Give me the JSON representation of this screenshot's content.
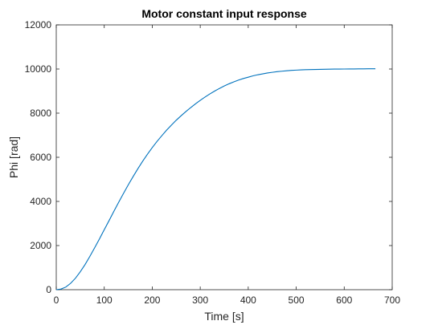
{
  "chart_data": {
    "type": "line",
    "title": "Motor constant input response",
    "xlabel": "Time [s]",
    "ylabel": "Phi [rad]",
    "xlim": [
      0,
      700
    ],
    "ylim": [
      0,
      12000
    ],
    "xticks": [
      0,
      100,
      200,
      300,
      400,
      500,
      600,
      700
    ],
    "yticks": [
      0,
      2000,
      4000,
      6000,
      8000,
      10000,
      12000
    ],
    "xtick_labels": [
      "0",
      "100",
      "200",
      "300",
      "400",
      "500",
      "600",
      "700"
    ],
    "ytick_labels": [
      "0",
      "2000",
      "4000",
      "6000",
      "8000",
      "10000",
      "12000"
    ],
    "grid": false,
    "legend": false,
    "line_color": "#0072bd",
    "series": [
      {
        "x": [
          0,
          10,
          20,
          30,
          40,
          50,
          60,
          70,
          80,
          90,
          100,
          110,
          120,
          130,
          140,
          150,
          160,
          170,
          180,
          190,
          200,
          210,
          220,
          230,
          240,
          250,
          260,
          270,
          280,
          290,
          300,
          310,
          320,
          330,
          340,
          350,
          360,
          370,
          380,
          390,
          400,
          410,
          420,
          430,
          440,
          450,
          460,
          470,
          480,
          490,
          500,
          510,
          520,
          530,
          540,
          550,
          560,
          570,
          580,
          590,
          600,
          610,
          620,
          630,
          640,
          650,
          665
        ],
        "y": [
          0,
          30,
          120,
          290,
          520,
          810,
          1140,
          1510,
          1900,
          2300,
          2720,
          3130,
          3550,
          3960,
          4360,
          4750,
          5120,
          5480,
          5820,
          6140,
          6440,
          6720,
          6980,
          7230,
          7460,
          7680,
          7880,
          8070,
          8250,
          8420,
          8580,
          8730,
          8870,
          9000,
          9120,
          9230,
          9330,
          9420,
          9500,
          9570,
          9630,
          9690,
          9740,
          9780,
          9820,
          9850,
          9880,
          9900,
          9920,
          9940,
          9950,
          9960,
          9970,
          9975,
          9980,
          9985,
          9990,
          9993,
          9996,
          9998,
          10000,
          10002,
          10004,
          10006,
          10008,
          10010,
          10012
        ]
      }
    ]
  }
}
